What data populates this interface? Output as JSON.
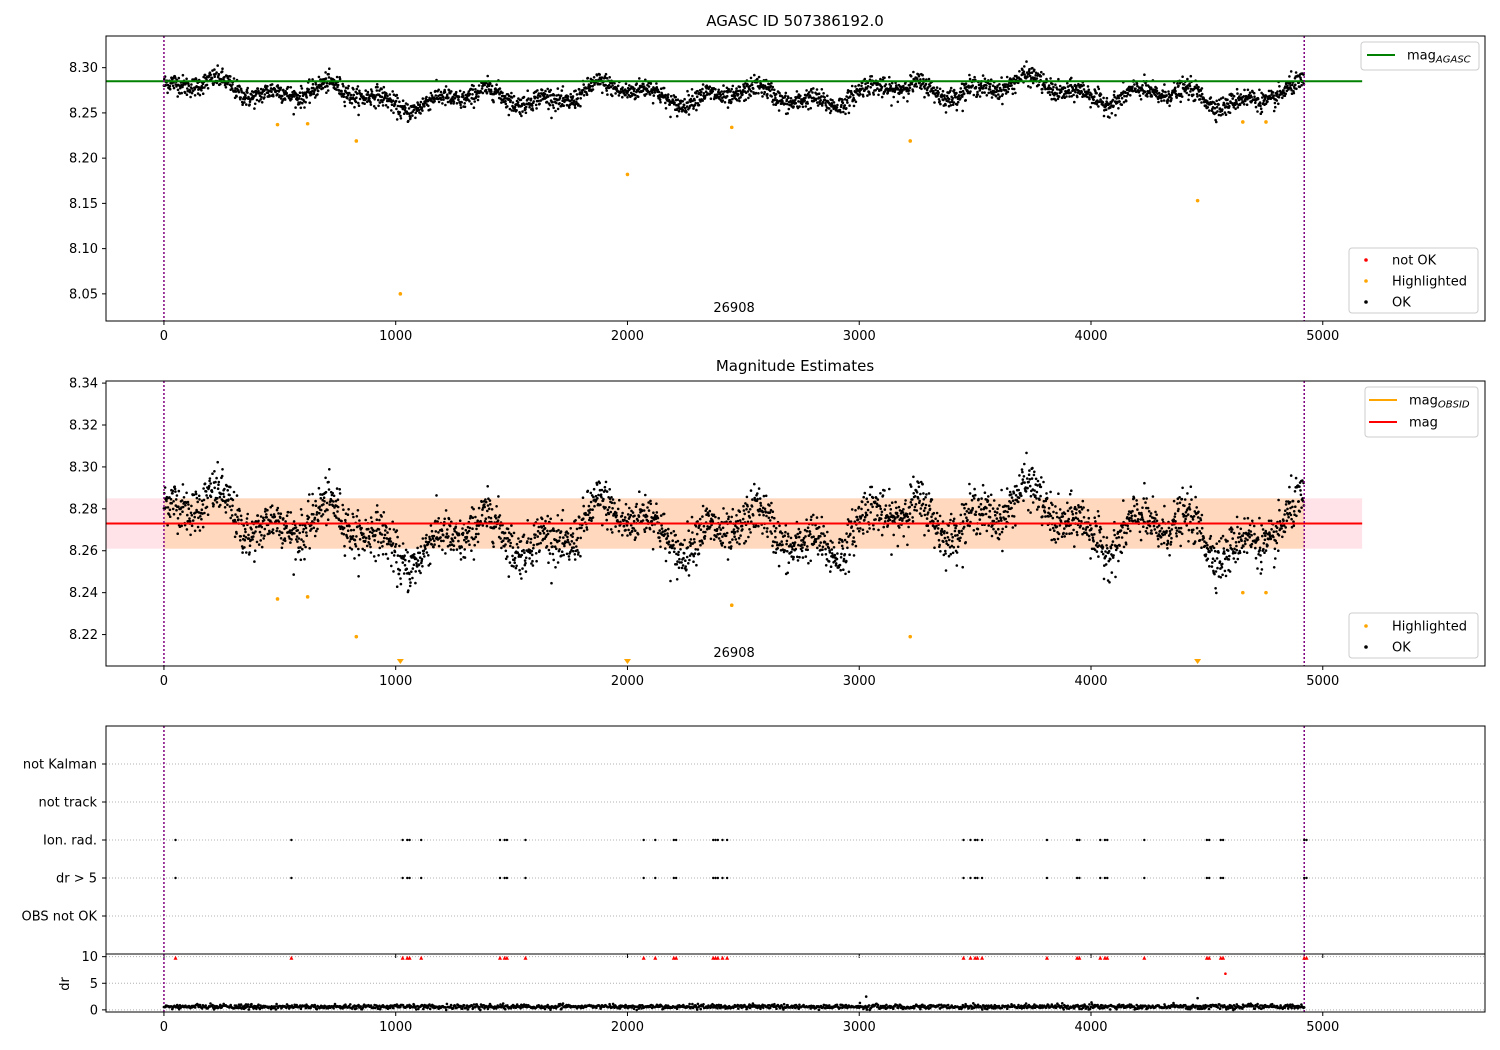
{
  "figure": {
    "title": "AGASC ID 507386192.0"
  },
  "chart_data": [
    {
      "type": "scatter",
      "title": "AGASC ID 507386192.0",
      "xlim": [
        -250,
        5700
      ],
      "ylim": [
        8.02,
        8.335
      ],
      "xticks": [
        0,
        1000,
        2000,
        3000,
        4000,
        5000
      ],
      "yticks": [
        8.05,
        8.1,
        8.15,
        8.2,
        8.25,
        8.3
      ],
      "grid": false,
      "annotation": "26908",
      "vlines": [
        0,
        4920
      ],
      "reference_line": {
        "name": "mag",
        "subscript": "AGASC",
        "value": 8.285,
        "x_range": [
          -250,
          5170
        ],
        "color": "#008000"
      },
      "ok_band": {
        "x_range": [
          0,
          4920
        ],
        "center": 8.271,
        "spread": 0.012
      },
      "highlighted": {
        "x": [
          490,
          620,
          830,
          1020,
          2000,
          2450,
          3220,
          4460,
          4655,
          4755
        ],
        "y": [
          8.237,
          8.238,
          8.219,
          8.05,
          8.182,
          8.234,
          8.219,
          8.153,
          8.24,
          8.24
        ]
      },
      "legend_top": [
        {
          "name": "mag",
          "subscript": "AGASC",
          "color": "#008000"
        }
      ],
      "legend_bottom": [
        {
          "name": "not OK",
          "color": "#ff0000"
        },
        {
          "name": "Highlighted",
          "color": "#ffa500"
        },
        {
          "name": "OK",
          "color": "#000000"
        }
      ],
      "legend_placement": [
        "upper right",
        "lower right"
      ]
    },
    {
      "type": "scatter",
      "title": "Magnitude Estimates",
      "xlim": [
        -250,
        5700
      ],
      "ylim": [
        8.205,
        8.341
      ],
      "xticks": [
        0,
        1000,
        2000,
        3000,
        4000,
        5000
      ],
      "yticks": [
        8.22,
        8.24,
        8.26,
        8.28,
        8.3,
        8.32,
        8.34
      ],
      "grid": false,
      "annotation": "26908",
      "vlines": [
        0,
        4920
      ],
      "mag_line": {
        "name": "mag",
        "value": 8.273,
        "x_range": [
          -250,
          5170
        ],
        "color": "#ff0000"
      },
      "mag_band": {
        "low": 8.261,
        "high": 8.285,
        "x_range": [
          -250,
          5170
        ],
        "color": "#ffc0cb"
      },
      "obsid_band": {
        "name": "mag",
        "subscript": "OBSID",
        "low": 8.261,
        "high": 8.285,
        "x_range": [
          0,
          4920
        ],
        "color": "#ffa500"
      },
      "highlighted": {
        "x": [
          490,
          620,
          830,
          3220,
          2450,
          4655,
          4755
        ],
        "y": [
          8.237,
          8.238,
          8.219,
          8.219,
          8.234,
          8.24,
          8.24
        ]
      },
      "below_range_markers": {
        "x": [
          1020,
          2000,
          4460
        ]
      },
      "legend_top": [
        {
          "name": "mag",
          "subscript": "OBSID",
          "color": "#ffa500"
        },
        {
          "name": "mag",
          "color": "#ff0000"
        }
      ],
      "legend_bottom": [
        {
          "name": "Highlighted",
          "color": "#ffa500"
        },
        {
          "name": "OK",
          "color": "#000000"
        }
      ],
      "legend_placement": [
        "upper right",
        "lower right"
      ]
    },
    {
      "type": "scatter",
      "title": "",
      "xlim": [
        -250,
        5700
      ],
      "vlines": [
        0,
        4920
      ],
      "categories": [
        "not Kalman",
        "not track",
        "Ion. rad.",
        "dr > 5",
        "OBS not OK"
      ],
      "flag_x": [
        50,
        550,
        1030,
        1050,
        1060,
        1110,
        1450,
        1470,
        1480,
        1560,
        2070,
        2120,
        2200,
        2210,
        2370,
        2380,
        2390,
        2410,
        2430,
        3450,
        3480,
        3500,
        3510,
        3530,
        3810,
        3940,
        3950,
        4040,
        4060,
        4070,
        4230,
        4500,
        4510,
        4560,
        4570,
        4920,
        4930
      ],
      "flagged_rows": [
        "Ion. rad.",
        "dr > 5"
      ],
      "grid": true
    },
    {
      "type": "scatter",
      "title": "",
      "xlim": [
        -250,
        5700
      ],
      "ylim": [
        -0.4,
        10.5
      ],
      "xticks": [
        0,
        1000,
        2000,
        3000,
        4000,
        5000
      ],
      "yticks": [
        0,
        5,
        10
      ],
      "ylabel": "dr",
      "vlines": [
        0,
        4920
      ],
      "dr_baseline": {
        "center": 0.6,
        "spread": 0.35
      },
      "dr_spikes": {
        "x": [
          3030,
          4460
        ],
        "y": [
          2.5,
          2.2
        ]
      },
      "capped": {
        "x": [
          50,
          550,
          1030,
          1050,
          1060,
          1110,
          1450,
          1470,
          1480,
          1560,
          2070,
          2120,
          2200,
          2210,
          2370,
          2380,
          2390,
          2410,
          2430,
          3450,
          3480,
          3500,
          3510,
          3530,
          3810,
          3940,
          3950,
          4040,
          4060,
          4070,
          4230,
          4500,
          4510,
          4560,
          4570,
          4920,
          4930
        ],
        "value": 9.8
      },
      "extra_red": {
        "x": [
          4580
        ],
        "y": [
          6.8
        ]
      },
      "grid": true
    }
  ],
  "colors": {
    "ok": "#000000",
    "highlighted": "#ffa500",
    "not_ok": "#ff0000",
    "vline": "#800080",
    "grid": "#b0b0b0",
    "band_pink": "#ffc0cb",
    "band_orange": "#ffa500"
  }
}
